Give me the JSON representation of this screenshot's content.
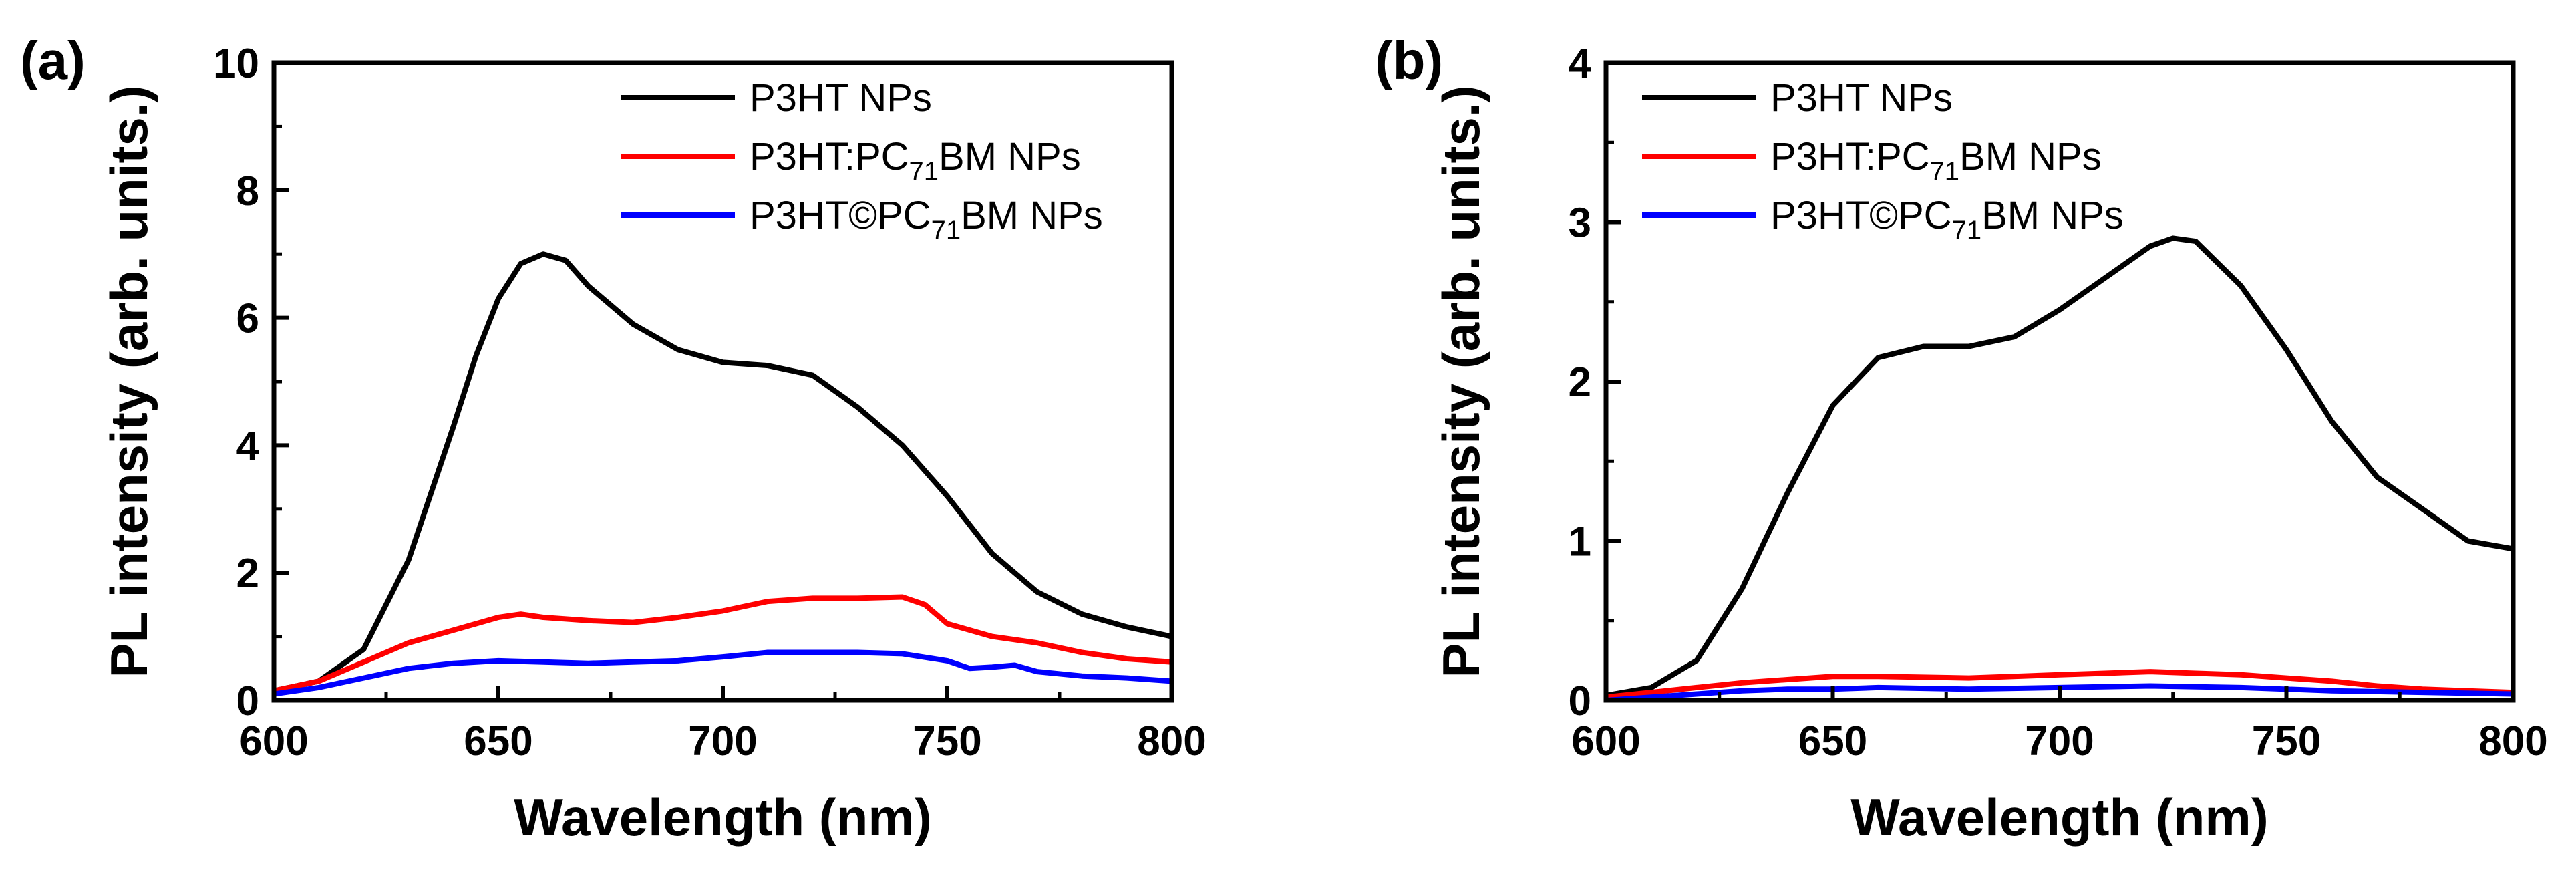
{
  "chart_data": [
    {
      "panel": "(a)",
      "type": "line",
      "xlabel": "Wavelength (nm)",
      "ylabel": "PL intensity (arb. units.)",
      "xlim": [
        600,
        800
      ],
      "ylim": [
        0,
        10
      ],
      "xticks": [
        600,
        650,
        700,
        750,
        800
      ],
      "yticks": [
        0,
        2,
        4,
        6,
        8,
        10
      ],
      "grid": false,
      "legend_position": "top-right",
      "series": [
        {
          "name": "P3HT NPs",
          "label_main": "P3HT NPs",
          "label_sub": "",
          "label_tail": "",
          "color": "#000000",
          "points": [
            [
              600,
              0.15
            ],
            [
              610,
              0.3
            ],
            [
              620,
              0.8
            ],
            [
              630,
              2.2
            ],
            [
              640,
              4.3
            ],
            [
              645,
              5.4
            ],
            [
              650,
              6.3
            ],
            [
              655,
              6.85
            ],
            [
              660,
              7.0
            ],
            [
              665,
              6.9
            ],
            [
              670,
              6.5
            ],
            [
              680,
              5.9
            ],
            [
              690,
              5.5
            ],
            [
              700,
              5.3
            ],
            [
              710,
              5.25
            ],
            [
              720,
              5.1
            ],
            [
              730,
              4.6
            ],
            [
              740,
              4.0
            ],
            [
              750,
              3.2
            ],
            [
              760,
              2.3
            ],
            [
              770,
              1.7
            ],
            [
              780,
              1.35
            ],
            [
              790,
              1.15
            ],
            [
              800,
              1.0
            ]
          ]
        },
        {
          "name": "P3HT:PC71BM NPs",
          "label_main": "P3HT:PC",
          "label_sub": "71",
          "label_tail": "BM NPs",
          "color": "#ff0000",
          "points": [
            [
              600,
              0.15
            ],
            [
              610,
              0.3
            ],
            [
              620,
              0.6
            ],
            [
              630,
              0.9
            ],
            [
              640,
              1.1
            ],
            [
              650,
              1.3
            ],
            [
              655,
              1.35
            ],
            [
              660,
              1.3
            ],
            [
              670,
              1.25
            ],
            [
              680,
              1.22
            ],
            [
              690,
              1.3
            ],
            [
              700,
              1.4
            ],
            [
              710,
              1.55
            ],
            [
              720,
              1.6
            ],
            [
              730,
              1.6
            ],
            [
              740,
              1.62
            ],
            [
              745,
              1.5
            ],
            [
              750,
              1.2
            ],
            [
              760,
              1.0
            ],
            [
              770,
              0.9
            ],
            [
              780,
              0.75
            ],
            [
              790,
              0.65
            ],
            [
              800,
              0.6
            ]
          ]
        },
        {
          "name": "P3HT©PC71BM NPs",
          "label_main": "P3HT©PC",
          "label_sub": "71",
          "label_tail": "BM NPs",
          "color": "#0000ff",
          "points": [
            [
              600,
              0.1
            ],
            [
              610,
              0.2
            ],
            [
              620,
              0.35
            ],
            [
              630,
              0.5
            ],
            [
              640,
              0.58
            ],
            [
              650,
              0.62
            ],
            [
              660,
              0.6
            ],
            [
              670,
              0.58
            ],
            [
              680,
              0.6
            ],
            [
              690,
              0.62
            ],
            [
              700,
              0.68
            ],
            [
              710,
              0.75
            ],
            [
              720,
              0.75
            ],
            [
              730,
              0.75
            ],
            [
              740,
              0.73
            ],
            [
              750,
              0.62
            ],
            [
              755,
              0.5
            ],
            [
              760,
              0.52
            ],
            [
              765,
              0.55
            ],
            [
              770,
              0.45
            ],
            [
              780,
              0.38
            ],
            [
              790,
              0.35
            ],
            [
              800,
              0.3
            ]
          ]
        }
      ]
    },
    {
      "panel": "(b)",
      "type": "line",
      "xlabel": "Wavelength (nm)",
      "ylabel": "PL intensity (arb. units.)",
      "xlim": [
        600,
        800
      ],
      "ylim": [
        0,
        4
      ],
      "xticks": [
        600,
        650,
        700,
        750,
        800
      ],
      "yticks": [
        0,
        1,
        2,
        3,
        4
      ],
      "grid": false,
      "legend_position": "top-left",
      "series": [
        {
          "name": "P3HT NPs",
          "label_main": "P3HT NPs",
          "label_sub": "",
          "label_tail": "",
          "color": "#000000",
          "points": [
            [
              600,
              0.03
            ],
            [
              610,
              0.08
            ],
            [
              620,
              0.25
            ],
            [
              630,
              0.7
            ],
            [
              640,
              1.3
            ],
            [
              650,
              1.85
            ],
            [
              660,
              2.15
            ],
            [
              670,
              2.22
            ],
            [
              680,
              2.22
            ],
            [
              690,
              2.28
            ],
            [
              700,
              2.45
            ],
            [
              710,
              2.65
            ],
            [
              720,
              2.85
            ],
            [
              725,
              2.9
            ],
            [
              730,
              2.88
            ],
            [
              740,
              2.6
            ],
            [
              750,
              2.2
            ],
            [
              760,
              1.75
            ],
            [
              770,
              1.4
            ],
            [
              780,
              1.2
            ],
            [
              790,
              1.0
            ],
            [
              800,
              0.95
            ]
          ]
        },
        {
          "name": "P3HT:PC71BM NPs",
          "label_main": "P3HT:PC",
          "label_sub": "71",
          "label_tail": "BM NPs",
          "color": "#ff0000",
          "points": [
            [
              600,
              0.02
            ],
            [
              610,
              0.05
            ],
            [
              620,
              0.08
            ],
            [
              630,
              0.11
            ],
            [
              640,
              0.13
            ],
            [
              650,
              0.15
            ],
            [
              660,
              0.15
            ],
            [
              680,
              0.14
            ],
            [
              700,
              0.16
            ],
            [
              710,
              0.17
            ],
            [
              720,
              0.18
            ],
            [
              730,
              0.17
            ],
            [
              740,
              0.16
            ],
            [
              750,
              0.14
            ],
            [
              760,
              0.12
            ],
            [
              770,
              0.09
            ],
            [
              780,
              0.07
            ],
            [
              790,
              0.06
            ],
            [
              800,
              0.05
            ]
          ]
        },
        {
          "name": "P3HT©PC71BM NPs",
          "label_main": "P3HT©PC",
          "label_sub": "71",
          "label_tail": "BM NPs",
          "color": "#0000ff",
          "points": [
            [
              600,
              0.0
            ],
            [
              610,
              0.02
            ],
            [
              620,
              0.04
            ],
            [
              630,
              0.06
            ],
            [
              640,
              0.07
            ],
            [
              650,
              0.07
            ],
            [
              660,
              0.08
            ],
            [
              680,
              0.07
            ],
            [
              700,
              0.08
            ],
            [
              720,
              0.09
            ],
            [
              740,
              0.08
            ],
            [
              760,
              0.06
            ],
            [
              780,
              0.05
            ],
            [
              800,
              0.04
            ]
          ]
        }
      ]
    }
  ]
}
